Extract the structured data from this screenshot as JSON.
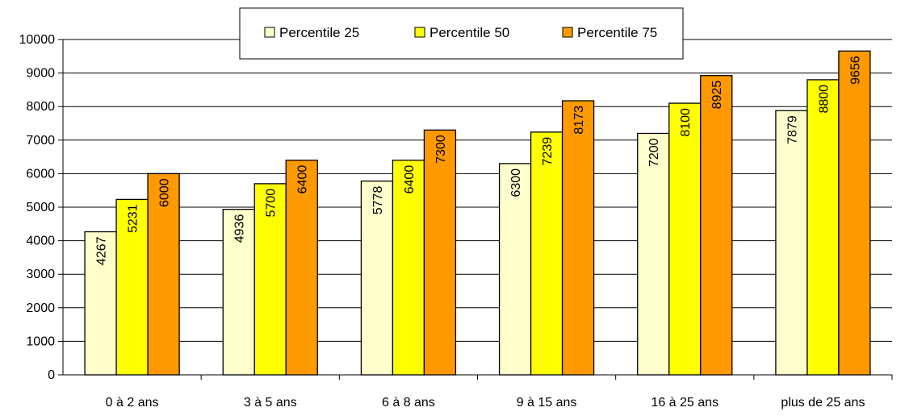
{
  "chart_data": {
    "type": "bar",
    "categories": [
      "0 à 2 ans",
      "3 à 5 ans",
      "6 à 8 ans",
      "9 à 15 ans",
      "16 à 25 ans",
      "plus de 25 ans"
    ],
    "series": [
      {
        "name": "Percentile 25",
        "color": "#FFFFCC",
        "values": [
          4267,
          4936,
          5778,
          6300,
          7200,
          7879
        ]
      },
      {
        "name": "Percentile 50",
        "color": "#FFFF00",
        "values": [
          5231,
          5700,
          6400,
          7239,
          8100,
          8800
        ]
      },
      {
        "name": "Percentile 75",
        "color": "#FF9900",
        "values": [
          6000,
          6400,
          7300,
          8173,
          8925,
          9656
        ]
      }
    ],
    "yticks": [
      "0",
      "1000",
      "2000",
      "3000",
      "4000",
      "5000",
      "6000",
      "7000",
      "8000",
      "9000",
      "10000"
    ],
    "ylim": [
      0,
      10000
    ],
    "grid": true,
    "legend_position": "top-center",
    "title": "",
    "xlabel": "",
    "ylabel": ""
  }
}
